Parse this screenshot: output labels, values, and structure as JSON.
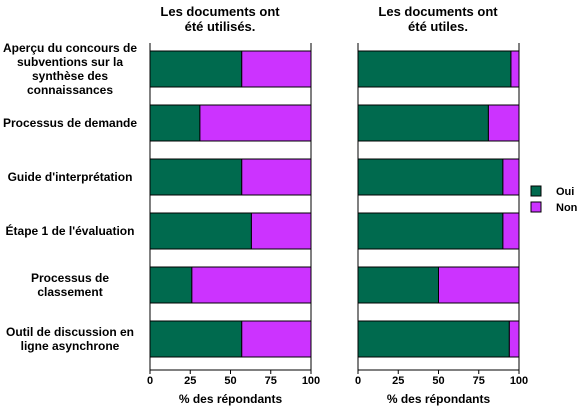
{
  "chart_data": {
    "type": "bar",
    "orientation": "horizontal",
    "stacked": true,
    "categories": [
      "Aperçu du concours de subventions sur la synthèse des connaissances",
      "Processus de demande",
      "Guide d'interprétation",
      "Étape 1 de l'évaluation",
      "Processus de classement",
      "Outil de discussion en ligne asynchrone"
    ],
    "category_label_lines": [
      [
        "Aperçu du concours de",
        "subventions sur la",
        "synthèse des",
        "connaissances"
      ],
      [
        "Processus de demande"
      ],
      [
        "Guide d'interprétation"
      ],
      [
        "Étape 1 de l'évaluation"
      ],
      [
        "Processus de",
        "classement"
      ],
      [
        "Outil de discussion en",
        "ligne asynchrone"
      ]
    ],
    "panels": [
      {
        "title_lines": [
          "Les documents ont",
          "été utilisés."
        ],
        "xlabel": "% des répondants",
        "xlim": [
          0,
          100
        ],
        "xticks": [
          "0",
          "25",
          "50",
          "75",
          "100"
        ],
        "series": [
          {
            "name": "Oui",
            "values": [
              57,
              31,
              57,
              63,
              26,
              57
            ]
          },
          {
            "name": "Non",
            "values": [
              43,
              69,
              43,
              37,
              74,
              43
            ]
          }
        ]
      },
      {
        "title_lines": [
          "Les documents ont",
          "été utiles."
        ],
        "xlabel": "% des répondants",
        "xlim": [
          0,
          100
        ],
        "xticks": [
          "0",
          "25",
          "50",
          "75",
          "100"
        ],
        "series": [
          {
            "name": "Oui",
            "values": [
              95,
              81,
              90,
              90,
              50,
              94
            ]
          },
          {
            "name": "Non",
            "values": [
              5,
              19,
              10,
              10,
              50,
              6
            ]
          }
        ]
      }
    ],
    "legend": {
      "placement": "right",
      "entries": [
        "Oui",
        "Non"
      ]
    },
    "colors": {
      "Oui": "#006a4e",
      "Non": "#cc33ff"
    },
    "grid": false
  }
}
